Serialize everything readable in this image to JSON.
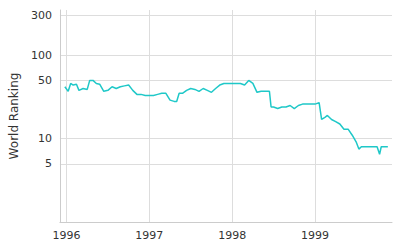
{
  "chart_data": {
    "type": "line",
    "y_label": "World Ranking",
    "color": "#1fc8c8",
    "log": "y",
    "grid": true,
    "x": [
      1995.98,
      1996.02,
      1996.05,
      1996.08,
      1996.12,
      1996.15,
      1996.2,
      1996.25,
      1996.28,
      1996.32,
      1996.36,
      1996.4,
      1996.45,
      1996.5,
      1996.55,
      1996.6,
      1996.65,
      1996.7,
      1996.75,
      1996.8,
      1996.85,
      1996.9,
      1996.95,
      1997.0,
      1997.05,
      1997.1,
      1997.15,
      1997.2,
      1997.25,
      1997.3,
      1997.33,
      1997.36,
      1997.4,
      1997.45,
      1997.5,
      1997.55,
      1997.6,
      1997.65,
      1997.7,
      1997.75,
      1997.8,
      1997.85,
      1997.9,
      1997.95,
      1998.0,
      1998.05,
      1998.1,
      1998.15,
      1998.2,
      1998.25,
      1998.3,
      1998.35,
      1998.4,
      1998.45,
      1998.47,
      1998.5,
      1998.55,
      1998.6,
      1998.65,
      1998.7,
      1998.75,
      1998.8,
      1998.85,
      1998.9,
      1998.95,
      1999.0,
      1999.05,
      1999.08,
      1999.12,
      1999.15,
      1999.2,
      1999.25,
      1999.3,
      1999.35,
      1999.4,
      1999.45,
      1999.5,
      1999.53,
      1999.56,
      1999.6,
      1999.65,
      1999.7,
      1999.75,
      1999.78,
      1999.8,
      1999.85,
      1999.88
    ],
    "values": [
      42,
      37,
      46,
      44,
      45,
      38,
      40,
      39,
      50,
      50,
      46,
      45,
      37,
      38,
      42,
      40,
      42,
      43,
      44,
      38,
      34,
      34,
      33,
      33,
      33,
      34,
      35,
      35,
      29,
      28,
      28,
      35,
      35,
      38,
      40,
      39,
      37,
      40,
      38,
      36,
      40,
      44,
      46,
      46,
      46,
      46,
      46,
      44,
      50,
      46,
      36,
      37,
      37,
      37,
      24,
      24,
      23,
      24,
      24,
      25,
      23,
      25,
      26,
      26,
      26,
      26,
      27,
      17,
      18,
      19,
      17,
      16,
      15,
      13,
      13,
      11,
      9,
      7.5,
      8,
      8,
      8,
      8,
      8,
      6.5,
      8,
      8,
      8
    ],
    "xlim": [
      1995.92,
      1999.93
    ],
    "xticks": [
      1996,
      1997,
      1998,
      1999
    ],
    "ylim": [
      1,
      350
    ],
    "yticks": [
      5,
      10,
      50,
      100,
      300
    ]
  }
}
